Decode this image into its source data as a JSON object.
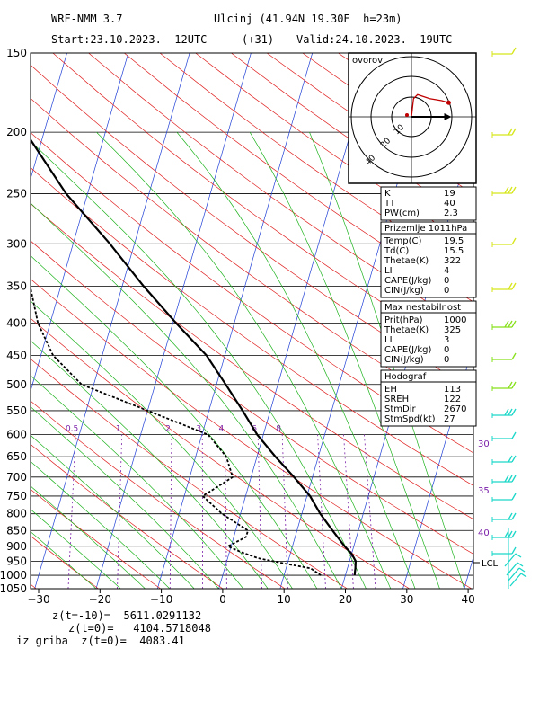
{
  "header": {
    "model": "WRF-NMM 3.7",
    "station": "Ulcinj (41.94N 19.30E  h=23m)",
    "start": "Start:23.10.2023.  12UTC",
    "offset": "(+31)",
    "valid": "Valid:24.10.2023.  19UTC"
  },
  "colors": {
    "isotherm": "#1f3fd6",
    "dry_adiabat": "#e02020",
    "moist_adiabat": "#1db31d",
    "mixing_ratio": "#7a1fa8",
    "wind_barb_upper": "#d7e61a",
    "wind_barb_mid": "#86e01a",
    "wind_barb_low": "#1ad7c8",
    "frame": "#000000"
  },
  "chart_data": {
    "type": "skew-t log-p",
    "xlabel": "",
    "ylabel": "",
    "x_ticks": [
      -30,
      -20,
      -10,
      0,
      10,
      20,
      30,
      40
    ],
    "y_ticks": [
      150,
      200,
      250,
      300,
      350,
      400,
      450,
      500,
      550,
      600,
      650,
      700,
      750,
      800,
      850,
      900,
      950,
      1000,
      1050
    ],
    "xlim": [
      -30,
      42
    ],
    "ylim": [
      1050,
      150
    ],
    "grid": true,
    "mixing_ratio_labels": [
      "0.5",
      "1",
      "2",
      "3",
      "4",
      "6",
      "8"
    ],
    "theta_e_labels": [
      "30",
      "35",
      "40"
    ],
    "lcl_label": "LCL",
    "series": [
      {
        "role": "temperature",
        "points": [
          [
            1000,
            21.5
          ],
          [
            975,
            21.3
          ],
          [
            950,
            21.0
          ],
          [
            925,
            20.0
          ],
          [
            900,
            18.5
          ],
          [
            850,
            15.8
          ],
          [
            800,
            13.0
          ],
          [
            750,
            10.5
          ],
          [
            700,
            7.0
          ],
          [
            650,
            3.0
          ],
          [
            600,
            -1.0
          ],
          [
            550,
            -4.5
          ],
          [
            500,
            -8.5
          ],
          [
            450,
            -13.0
          ],
          [
            400,
            -19.5
          ],
          [
            350,
            -26.5
          ],
          [
            300,
            -34.0
          ],
          [
            250,
            -43.5
          ],
          [
            200,
            -53.0
          ],
          [
            150,
            -56.5
          ]
        ]
      },
      {
        "role": "dewpoint",
        "points": [
          [
            1000,
            16.0
          ],
          [
            975,
            14.0
          ],
          [
            960,
            10.0
          ],
          [
            940,
            5.0
          ],
          [
            920,
            2.0
          ],
          [
            900,
            -0.5
          ],
          [
            870,
            2.0
          ],
          [
            850,
            2.0
          ],
          [
            800,
            -3.0
          ],
          [
            750,
            -7.0
          ],
          [
            725,
            -5.0
          ],
          [
            700,
            -3.0
          ],
          [
            650,
            -5.0
          ],
          [
            600,
            -9.0
          ],
          [
            550,
            -20.0
          ],
          [
            500,
            -32.0
          ],
          [
            450,
            -38.0
          ],
          [
            400,
            -42.0
          ],
          [
            350,
            -45.0
          ],
          [
            300,
            -49.0
          ],
          [
            250,
            -65.0
          ],
          [
            200,
            -81.0
          ],
          [
            150,
            -80.0
          ]
        ]
      }
    ],
    "hodograph": {
      "title": "ovorovi",
      "points": [
        [
          0,
          0
        ],
        [
          0.05,
          0.45
        ],
        [
          0.15,
          0.55
        ],
        [
          0.45,
          0.45
        ],
        [
          0.75,
          0.4
        ],
        [
          0.92,
          0.35
        ]
      ],
      "storm_motion_marker": [
        0.9,
        0.0
      ],
      "ring_labels": [
        "10",
        "20",
        "40"
      ]
    }
  },
  "indices": {
    "general": [
      {
        "label": "K",
        "value": "19"
      },
      {
        "label": "TT",
        "value": "40"
      },
      {
        "label": "PW(cm)",
        "value": "2.3"
      }
    ],
    "surface_title": "Prizemlje 1011hPa",
    "surface": [
      {
        "label": "Temp(C)",
        "value": "19.5"
      },
      {
        "label": "Td(C)",
        "value": "15.5"
      },
      {
        "label": "Thetae(K)",
        "value": "322"
      },
      {
        "label": "LI",
        "value": "4"
      },
      {
        "label": "CAPE(J/kg)",
        "value": "0"
      },
      {
        "label": "CIN(J/kg)",
        "value": "0"
      }
    ],
    "max_title": "Max nestabilnost",
    "max": [
      {
        "label": "Prit(hPa)",
        "value": "1000"
      },
      {
        "label": "Thetae(K)",
        "value": "325"
      },
      {
        "label": "LI",
        "value": "3"
      },
      {
        "label": "CAPE(J/kg)",
        "value": "0"
      },
      {
        "label": "CIN(J/kg)",
        "value": "0"
      }
    ],
    "hodo_title": "Hodograf",
    "hodo": [
      {
        "label": "EH",
        "value": "113"
      },
      {
        "label": "SREH",
        "value": "122"
      },
      {
        "label": "StmDir",
        "value": "2670"
      },
      {
        "label": "StmSpd(kt)",
        "value": "27"
      }
    ]
  },
  "footer": {
    "line1": "z(t=-10)=  5611.0291132",
    "line2": "z(t=0)=   4104.5718048",
    "line3": "iz griba  z(t=0)=  4083.41"
  }
}
